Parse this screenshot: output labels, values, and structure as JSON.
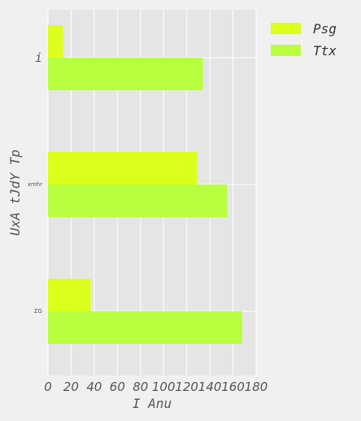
{
  "chart_data": {
    "type": "bar",
    "orientation": "horizontal",
    "categories": [
      "i",
      "xmhr",
      "ZG"
    ],
    "series": [
      {
        "name": "Psg",
        "values": [
          13,
          129,
          37
        ],
        "color": "#dcff1c"
      },
      {
        "name": "Ttx",
        "values": [
          134,
          155,
          168
        ],
        "color": "#b8ff40"
      }
    ],
    "xlabel": "I Anu",
    "ylabel": "UxA tJdY Tp",
    "xlim": [
      0,
      180
    ],
    "xticks": [
      "0",
      "20",
      "40",
      "60",
      "80",
      "100",
      "120",
      "140",
      "160",
      "180"
    ],
    "grid": true,
    "legend": "outside-top-right",
    "background": "#e5e5e5"
  }
}
